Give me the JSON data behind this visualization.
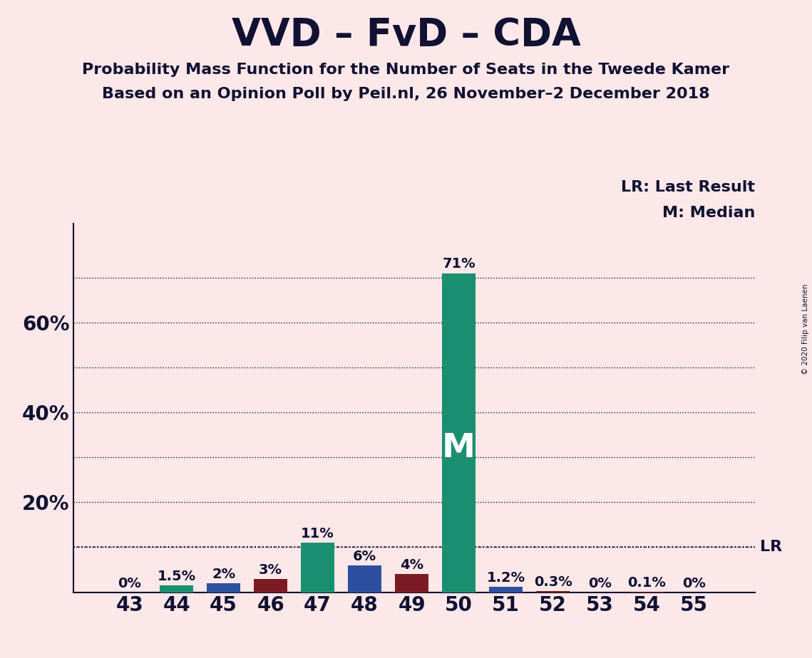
{
  "title": "VVD – FvD – CDA",
  "subtitle1": "Probability Mass Function for the Number of Seats in the Tweede Kamer",
  "subtitle2": "Based on an Opinion Poll by Peil.nl, 26 November–2 December 2018",
  "copyright": "© 2020 Filip van Laenen",
  "categories": [
    43,
    44,
    45,
    46,
    47,
    48,
    49,
    50,
    51,
    52,
    53,
    54,
    55
  ],
  "values": [
    0.0,
    1.5,
    2.0,
    3.0,
    11.0,
    6.0,
    4.0,
    71.0,
    1.2,
    0.3,
    0.0,
    0.1,
    0.0
  ],
  "label_texts": [
    "0%",
    "1.5%",
    "2%",
    "3%",
    "11%",
    "6%",
    "4%",
    "71%",
    "1.2%",
    "0.3%",
    "0%",
    "0.1%",
    "0%"
  ],
  "bar_colors": [
    "#fce8e8",
    "#1a9070",
    "#2d4fa0",
    "#7b1c24",
    "#1a9070",
    "#2d4fa0",
    "#7b1c24",
    "#1a9070",
    "#2d4fa0",
    "#7b1c24",
    "#fce8e8",
    "#7b1c24",
    "#fce8e8"
  ],
  "median_bar_idx": 7,
  "median_label": "M",
  "lr_value": 10.0,
  "lr_label": "LR",
  "legend_lr": "LR: Last Result",
  "legend_m": "M: Median",
  "background_color": "#fce8e8",
  "bar_width": 0.72,
  "ylim_max": 82,
  "title_fontsize": 38,
  "subtitle_fontsize": 16,
  "label_fontsize": 14,
  "tick_fontsize": 20,
  "legend_fontsize": 14,
  "spine_color": "#111133"
}
